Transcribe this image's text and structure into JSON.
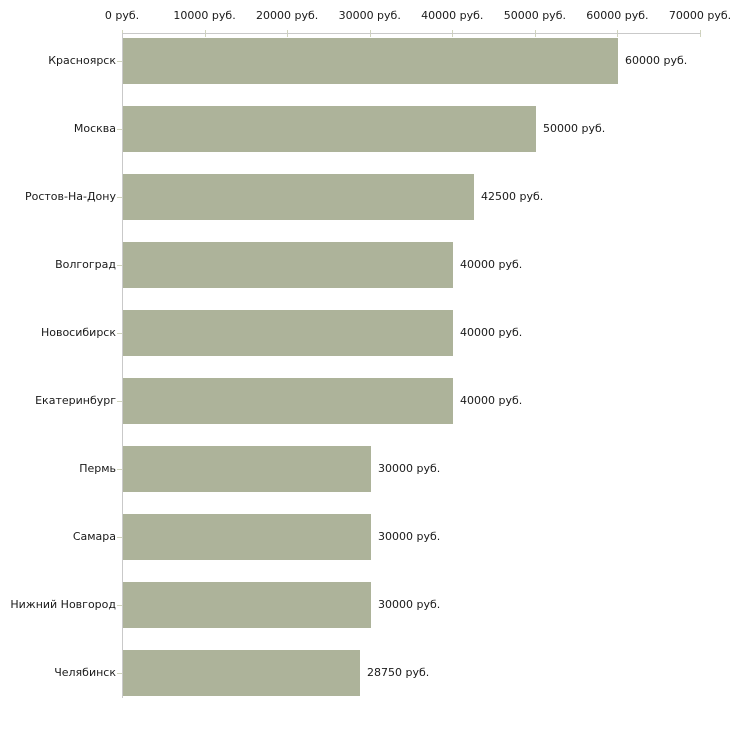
{
  "chart_data": {
    "type": "bar",
    "orientation": "horizontal",
    "title": "",
    "xlabel": "",
    "ylabel": "",
    "grid": false,
    "legend": null,
    "categories": [
      "Красноярск",
      "Москва",
      "Ростов-На-Дону",
      "Волгоград",
      "Новосибирск",
      "Екатеринбург",
      "Пермь",
      "Самара",
      "Нижний Новгород",
      "Челябинск"
    ],
    "values": [
      60000,
      50000,
      42500,
      40000,
      40000,
      40000,
      30000,
      30000,
      30000,
      28750
    ],
    "value_labels": [
      "60000 руб.",
      "50000 руб.",
      "42500 руб.",
      "40000 руб.",
      "40000 руб.",
      "40000 руб.",
      "30000 руб.",
      "30000 руб.",
      "30000 руб.",
      "28750 руб."
    ],
    "xlim": [
      0,
      70000
    ],
    "x_ticks": [
      0,
      10000,
      20000,
      30000,
      40000,
      50000,
      60000,
      70000
    ],
    "x_tick_labels": [
      "0 руб.",
      "10000 руб.",
      "20000 руб.",
      "30000 руб.",
      "40000 руб.",
      "50000 руб.",
      "60000 руб.",
      "70000 руб."
    ],
    "colors": {
      "bar": "#adb39a",
      "axis": "#c9c9c9",
      "tick": "#d0d4bc",
      "text": "#1a1a1a",
      "background": "#ffffff"
    }
  }
}
